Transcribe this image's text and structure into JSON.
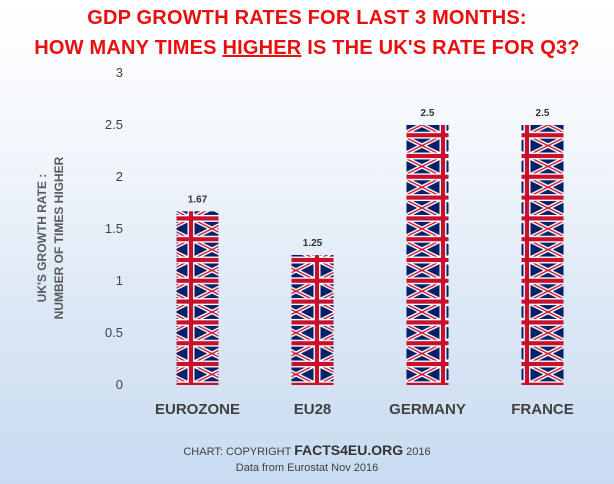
{
  "title": {
    "line1": "GDP GROWTH RATES FOR LAST 3 MONTHS:",
    "line2_before": "HOW MANY TIMES ",
    "line2_highlight": "HIGHER",
    "line2_after": " IS THE UK'S RATE FOR Q3?"
  },
  "footer": {
    "copyright_prefix": "CHART: COPYRIGHT ",
    "copyright_site": "FACTS4EU.ORG",
    "copyright_year": " 2016",
    "source": "Data from Eurostat Nov 2016"
  },
  "chart_data": {
    "type": "bar",
    "categories": [
      "EUROZONE",
      "EU28",
      "GERMANY",
      "FRANCE"
    ],
    "values": [
      1.67,
      1.25,
      2.5,
      2.5
    ],
    "data_labels": [
      "1.67",
      "1.25",
      "2.5",
      "2.5"
    ],
    "title": "GDP GROWTH RATES FOR LAST 3 MONTHS: HOW MANY TIMES HIGHER IS THE UK'S RATE FOR Q3?",
    "ylabel_line1": "UK'S GROWTH RATE :",
    "ylabel_line2": "NUMBER OF TIMES HIGHER",
    "xlabel": "",
    "ylim": [
      0,
      3
    ],
    "yticks": [
      0,
      0.5,
      1,
      1.5,
      2,
      2.5,
      3
    ],
    "ytick_labels": [
      "0",
      "0.5",
      "1",
      "1.5",
      "2",
      "2.5",
      "3"
    ],
    "grid": false,
    "legend": "none",
    "bar_fill": "union-flag-pattern",
    "colors": {
      "title": "#e8100e",
      "flag_blue": "#012169",
      "flag_red": "#c8102e",
      "flag_white": "#ffffff",
      "axis_text": "#404040"
    }
  }
}
